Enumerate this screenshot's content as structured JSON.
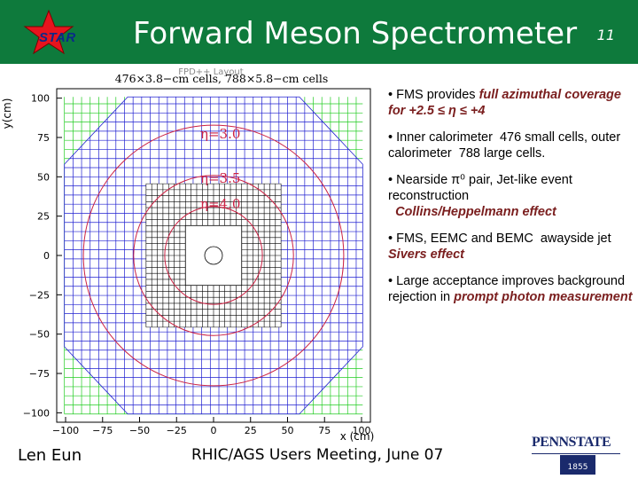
{
  "header": {
    "logo_text": "STAR",
    "title": "Forward Meson Spectrometer",
    "slide_number": "11"
  },
  "figure": {
    "caption_top": "476×3.8−cm cells, 788×5.8−cm cells",
    "caption_under": "FPD++ Layout",
    "ylabel": "y(cm)",
    "xlabel": "x (cm)",
    "eta_labels": [
      "η=3.0",
      "η=3.5",
      "η=4.0"
    ],
    "x_ticks": [
      "−100",
      "−75",
      "−50",
      "−25",
      "0",
      "25",
      "50",
      "75",
      "100"
    ],
    "y_ticks": [
      "100",
      "75",
      "50",
      "25",
      "0",
      "−25",
      "−50",
      "−75",
      "−100"
    ],
    "colors": {
      "outer_cells": "#2020d0",
      "inner_cells": "#000000",
      "corner_cells": "#22cc22",
      "eta_circles": "#cc2244"
    }
  },
  "bullets": [
    {
      "parts": [
        {
          "t": "• FMS provides "
        },
        {
          "t": "full azimuthal coverage for +2.5 ≤ η ≤ +4",
          "hl": true
        }
      ]
    },
    {
      "parts": [
        {
          "t": "• Inner calorimeter  476 small cells, outer calorimeter  788 large cells."
        }
      ]
    },
    {
      "parts": [
        {
          "t": "• Nearside π⁰ pair, Jet-like event reconstruction"
        },
        {
          "t": "\n  "
        },
        {
          "t": "Collins/Heppelmann effect",
          "hl": true
        }
      ]
    },
    {
      "parts": [
        {
          "t": "• FMS, EEMC and BEMC  awayside jet   "
        },
        {
          "t": "Sivers effect",
          "hl": true
        }
      ]
    },
    {
      "parts": [
        {
          "t": "• Large acceptance improves background rejection in "
        },
        {
          "t": "prompt photon measurement",
          "hl": true
        }
      ]
    }
  ],
  "footer": {
    "author": "Len Eun",
    "meeting": "RHIC/AGS Users Meeting, June 07",
    "logo_text": "PENNSTATE",
    "logo_year": "1855"
  }
}
